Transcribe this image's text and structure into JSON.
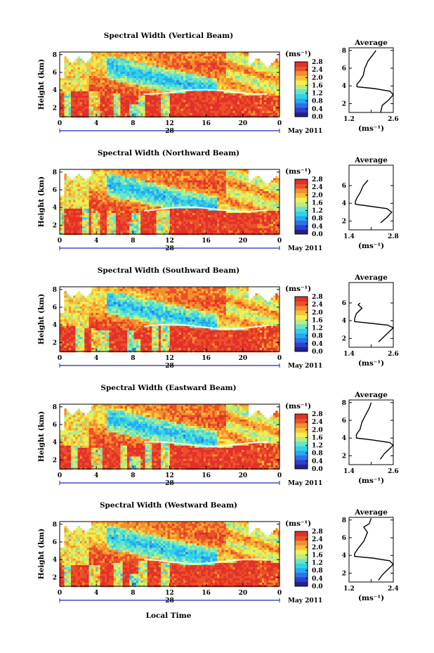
{
  "figure": {
    "bottom_xlabel": "Local Time",
    "date_day": "28",
    "date_month_year": "May 2011",
    "unit_label": "(ms⁻¹)",
    "colorbar_ticks": [
      "0.0",
      "0.4",
      "0.8",
      "1.2",
      "1.6",
      "2.0",
      "2.4",
      "2.8"
    ],
    "colormap": [
      "#22228a",
      "#2f3fd0",
      "#2a74e6",
      "#28a8f0",
      "#2fd3e6",
      "#6be3c8",
      "#b8ec84",
      "#f2ee50",
      "#f7c03a",
      "#f3902c",
      "#ec5028",
      "#e2302a"
    ]
  },
  "chart_data": [
    {
      "type": "heatmap",
      "title": "Spectral Width (Vertical Beam)",
      "ylabel": "Height (km)",
      "xlim": [
        0,
        24
      ],
      "ylim": [
        1,
        8.3
      ],
      "x_ticks": [
        "0",
        "4",
        "8",
        "12",
        "16",
        "20",
        "0"
      ],
      "y_ticks": [
        "2",
        "4",
        "6",
        "8"
      ],
      "colorbar_range": [
        0,
        2.8
      ],
      "profile": {
        "title": "Average",
        "xlabel": "(ms⁻¹)",
        "xlim": [
          1.2,
          2.6
        ],
        "x_ticks": [
          "1.2",
          "2.6"
        ],
        "y_ticks": [
          "2",
          "4",
          "6",
          "8"
        ],
        "heights": [
          1.0,
          1.8,
          2.4,
          3.0,
          3.4,
          3.7,
          3.9,
          4.2,
          4.6,
          5.2,
          6.0,
          6.8,
          7.5,
          8.0
        ],
        "values": [
          2.2,
          2.25,
          2.45,
          2.6,
          2.5,
          2.0,
          1.45,
          1.45,
          1.55,
          1.65,
          1.7,
          1.8,
          1.95,
          2.05
        ]
      }
    },
    {
      "type": "heatmap",
      "title": "Spectral Width (Northward Beam)",
      "ylabel": "Height (km)",
      "xlim": [
        0,
        24
      ],
      "ylim": [
        1,
        8.3
      ],
      "x_ticks": [
        "0",
        "4",
        "8",
        "12",
        "16",
        "20",
        "0"
      ],
      "y_ticks": [
        "2",
        "4",
        "6",
        "8"
      ],
      "colorbar_range": [
        0,
        2.8
      ],
      "profile": {
        "title": "Average",
        "xlabel": "(ms⁻¹)",
        "xlim": [
          1.4,
          2.8
        ],
        "x_ticks": [
          "1.4",
          "2.8"
        ],
        "y_ticks": [
          "2",
          "4",
          "6"
        ],
        "heights": [
          1.8,
          2.4,
          3.0,
          3.4,
          3.7,
          3.9,
          4.2,
          4.6,
          5.2,
          6.0,
          6.6
        ],
        "values": [
          2.4,
          2.6,
          2.75,
          2.6,
          2.0,
          1.6,
          1.6,
          1.65,
          1.75,
          1.85,
          2.0
        ]
      }
    },
    {
      "type": "heatmap",
      "title": "Spectral Width (Southward Beam)",
      "ylabel": "Height (km)",
      "xlim": [
        0,
        24
      ],
      "ylim": [
        1,
        8.3
      ],
      "x_ticks": [
        "0",
        "4",
        "8",
        "12",
        "16",
        "20",
        "0"
      ],
      "y_ticks": [
        "2",
        "4",
        "6",
        "8"
      ],
      "colorbar_range": [
        0,
        2.8
      ],
      "profile": {
        "title": "Average",
        "xlabel": "(ms⁻¹)",
        "xlim": [
          1.4,
          2.6
        ],
        "x_ticks": [
          "1.4",
          "2.6"
        ],
        "y_ticks": [
          "2",
          "4",
          "6"
        ],
        "heights": [
          1.6,
          2.2,
          2.8,
          3.2,
          3.5,
          3.7,
          3.9,
          4.2,
          4.8,
          5.4,
          5.8,
          6.0
        ],
        "values": [
          2.2,
          2.35,
          2.5,
          2.6,
          2.45,
          2.0,
          1.55,
          1.55,
          1.6,
          1.75,
          1.65,
          1.7
        ]
      }
    },
    {
      "type": "heatmap",
      "title": "Spectral Width (Eastward Beam)",
      "ylabel": "Height (km)",
      "xlim": [
        0,
        24
      ],
      "ylim": [
        1,
        8.3
      ],
      "x_ticks": [
        "0",
        "4",
        "8",
        "12",
        "16",
        "20",
        "0"
      ],
      "y_ticks": [
        "2",
        "4",
        "6",
        "8"
      ],
      "colorbar_range": [
        0,
        2.8
      ],
      "profile": {
        "title": "Average",
        "xlabel": "(ms⁻¹)",
        "xlim": [
          1.4,
          2.6
        ],
        "x_ticks": [
          "1.4",
          "2.6"
        ],
        "y_ticks": [
          "2",
          "4",
          "6",
          "8"
        ],
        "heights": [
          1.6,
          2.2,
          2.8,
          3.2,
          3.5,
          3.8,
          4.0,
          4.4,
          5.0,
          5.8,
          6.6,
          7.4,
          8.0
        ],
        "values": [
          2.25,
          2.35,
          2.5,
          2.6,
          2.5,
          2.0,
          1.6,
          1.6,
          1.7,
          1.75,
          1.85,
          1.95,
          2.0
        ]
      }
    },
    {
      "type": "heatmap",
      "title": "Spectral Width (Westward Beam)",
      "ylabel": "Height (km)",
      "xlim": [
        0,
        24
      ],
      "ylim": [
        1,
        8.3
      ],
      "x_ticks": [
        "0",
        "4",
        "8",
        "12",
        "16",
        "20",
        "0"
      ],
      "y_ticks": [
        "2",
        "4",
        "6",
        "8"
      ],
      "colorbar_range": [
        0,
        2.8
      ],
      "profile": {
        "title": "Average",
        "xlabel": "(ms⁻¹)",
        "xlim": [
          1.2,
          2.4
        ],
        "x_ticks": [
          "1.2",
          "2.4"
        ],
        "y_ticks": [
          "2",
          "4",
          "6",
          "8"
        ],
        "heights": [
          1.2,
          1.8,
          2.4,
          3.0,
          3.4,
          3.7,
          3.9,
          4.2,
          4.8,
          5.6,
          6.6,
          7.2,
          7.6,
          8.2
        ],
        "values": [
          2.0,
          2.1,
          2.25,
          2.4,
          2.3,
          1.85,
          1.35,
          1.35,
          1.45,
          1.6,
          1.7,
          1.6,
          1.75,
          1.8
        ]
      }
    }
  ]
}
